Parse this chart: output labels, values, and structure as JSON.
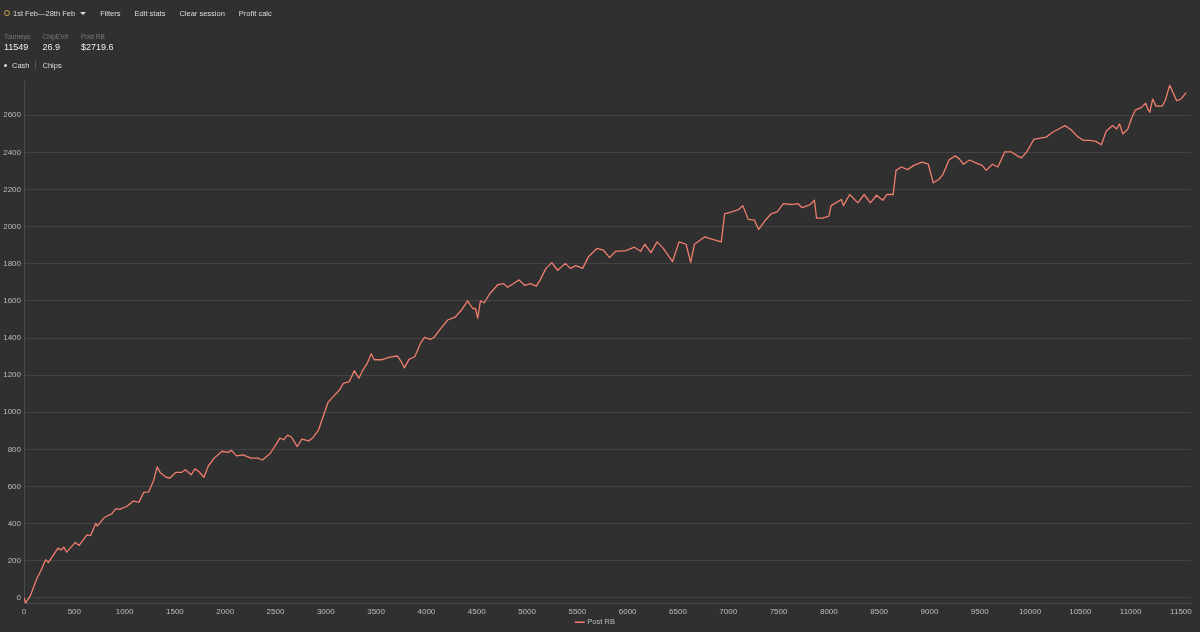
{
  "chart_data": {
    "type": "line",
    "title": "1st Feb—28th Feb",
    "annotations": [
      "Filters",
      "Edit stats",
      "Clear session",
      "Profit calc",
      "Tourneys",
      "11549",
      "ChipEV/t",
      "26.9",
      "Post RB",
      "$2719.6",
      "Cash",
      "Chips"
    ],
    "x": [
      0,
      16,
      50,
      69,
      127,
      165,
      215,
      242,
      338,
      370,
      396,
      423,
      510,
      548,
      625,
      663,
      714,
      729,
      798,
      875,
      913,
      952,
      1028,
      1086,
      1143,
      1189,
      1239,
      1289,
      1323,
      1353,
      1412,
      1451,
      1507,
      1566,
      1604,
      1662,
      1699,
      1738,
      1788,
      1833,
      1891,
      1968,
      2027,
      2063,
      2111,
      2178,
      2255,
      2325,
      2370,
      2447,
      2504,
      2543,
      2581,
      2620,
      2658,
      2716,
      2762,
      2830,
      2868,
      2926,
      2976,
      3022,
      3080,
      3137,
      3175,
      3233,
      3283,
      3329,
      3367,
      3413,
      3452,
      3482,
      3559,
      3636,
      3713,
      3751,
      3781,
      3827,
      3885,
      3942,
      3981,
      4038,
      4077,
      4134,
      4211,
      4287,
      4345,
      4410,
      4460,
      4487,
      4510,
      4537,
      4575,
      4633,
      4710,
      4767,
      4806,
      4882,
      4921,
      4978,
      5036,
      5093,
      5131,
      5188,
      5246,
      5304,
      5381,
      5431,
      5485,
      5553,
      5610,
      5649,
      5697,
      5758,
      5820,
      5882,
      5985,
      6067,
      6129,
      6170,
      6232,
      6293,
      6355,
      6446,
      6511,
      6581,
      6627,
      6664,
      6767,
      6828,
      6931,
      6964,
      7034,
      7096,
      7145,
      7199,
      7260,
      7302,
      7363,
      7425,
      7487,
      7548,
      7631,
      7692,
      7734,
      7816,
      7857,
      7878,
      7939,
      8001,
      8022,
      8125,
      8145,
      8207,
      8289,
      8351,
      8413,
      8474,
      8536,
      8577,
      8639,
      8668,
      8721,
      8783,
      8845,
      8927,
      8989,
      9038,
      9092,
      9133,
      9194,
      9256,
      9297,
      9338,
      9400,
      9462,
      9524,
      9565,
      9626,
      9680,
      9750,
      9812,
      9873,
      9915,
      9968,
      10038,
      10100,
      10161,
      10223,
      10285,
      10347,
      10408,
      10470,
      10532,
      10594,
      10655,
      10709,
      10758,
      10820,
      10861,
      10890,
      10923,
      10972,
      11013,
      11046,
      11108,
      11149,
      11170,
      11190,
      11219,
      11252,
      11314,
      11343,
      11388,
      11408,
      11458,
      11499,
      11549
    ],
    "series": [
      {
        "name": "Post RB",
        "color": "#f07e6e",
        "values": [
          0,
          -27,
          0,
          20,
          103,
          144,
          206,
          190,
          268,
          258,
          274,
          247,
          299,
          283,
          340,
          336,
          402,
          387,
          433,
          454,
          481,
          477,
          495,
          522,
          516,
          568,
          571,
          634,
          706,
          676,
          650,
          646,
          676,
          676,
          690,
          663,
          695,
          681,
          650,
          712,
          753,
          790,
          784,
          795,
          765,
          770,
          753,
          753,
          743,
          778,
          826,
          861,
          852,
          877,
          867,
          815,
          856,
          846,
          861,
          902,
          981,
          1053,
          1088,
          1121,
          1156,
          1165,
          1224,
          1183,
          1226,
          1265,
          1315,
          1283,
          1283,
          1297,
          1303,
          1272,
          1239,
          1285,
          1299,
          1373,
          1404,
          1393,
          1404,
          1445,
          1497,
          1513,
          1548,
          1600,
          1559,
          1559,
          1507,
          1600,
          1590,
          1641,
          1687,
          1693,
          1673,
          1699,
          1713,
          1683,
          1693,
          1679,
          1713,
          1775,
          1806,
          1765,
          1802,
          1775,
          1790,
          1775,
          1837,
          1858,
          1883,
          1874,
          1833,
          1867,
          1871,
          1889,
          1867,
          1905,
          1860,
          1918,
          1883,
          1811,
          1918,
          1905,
          1807,
          1905,
          1945,
          1934,
          1918,
          2068,
          2079,
          2090,
          2113,
          2039,
          2035,
          1985,
          2030,
          2068,
          2079,
          2124,
          2119,
          2124,
          2102,
          2119,
          2142,
          2046,
          2046,
          2057,
          2113,
          2146,
          2113,
          2173,
          2128,
          2173,
          2128,
          2169,
          2142,
          2173,
          2173,
          2303,
          2321,
          2307,
          2330,
          2347,
          2336,
          2236,
          2254,
          2280,
          2359,
          2381,
          2365,
          2336,
          2359,
          2343,
          2330,
          2303,
          2336,
          2321,
          2403,
          2403,
          2381,
          2370,
          2403,
          2470,
          2477,
          2482,
          2508,
          2526,
          2544,
          2522,
          2486,
          2464,
          2464,
          2459,
          2441,
          2515,
          2544,
          2526,
          2553,
          2499,
          2526,
          2589,
          2627,
          2642,
          2665,
          2634,
          2616,
          2687,
          2649,
          2649,
          2678,
          2761,
          2739,
          2678,
          2687,
          2720
        ]
      }
    ],
    "xlim": [
      0,
      11600
    ],
    "ylim": [
      -30,
      2780
    ],
    "xticks": [
      0,
      500,
      1000,
      1500,
      2000,
      2500,
      3000,
      3500,
      4000,
      4500,
      5000,
      5500,
      6000,
      6500,
      7000,
      7500,
      8000,
      8500,
      9000,
      9500,
      10000,
      10500,
      11000,
      11500
    ],
    "yticks": [
      0,
      200,
      400,
      600,
      800,
      1000,
      1200,
      1400,
      1600,
      1800,
      2000,
      2200,
      2400,
      2600
    ],
    "grid": "y",
    "legend": "bottom",
    "marker": "none"
  }
}
